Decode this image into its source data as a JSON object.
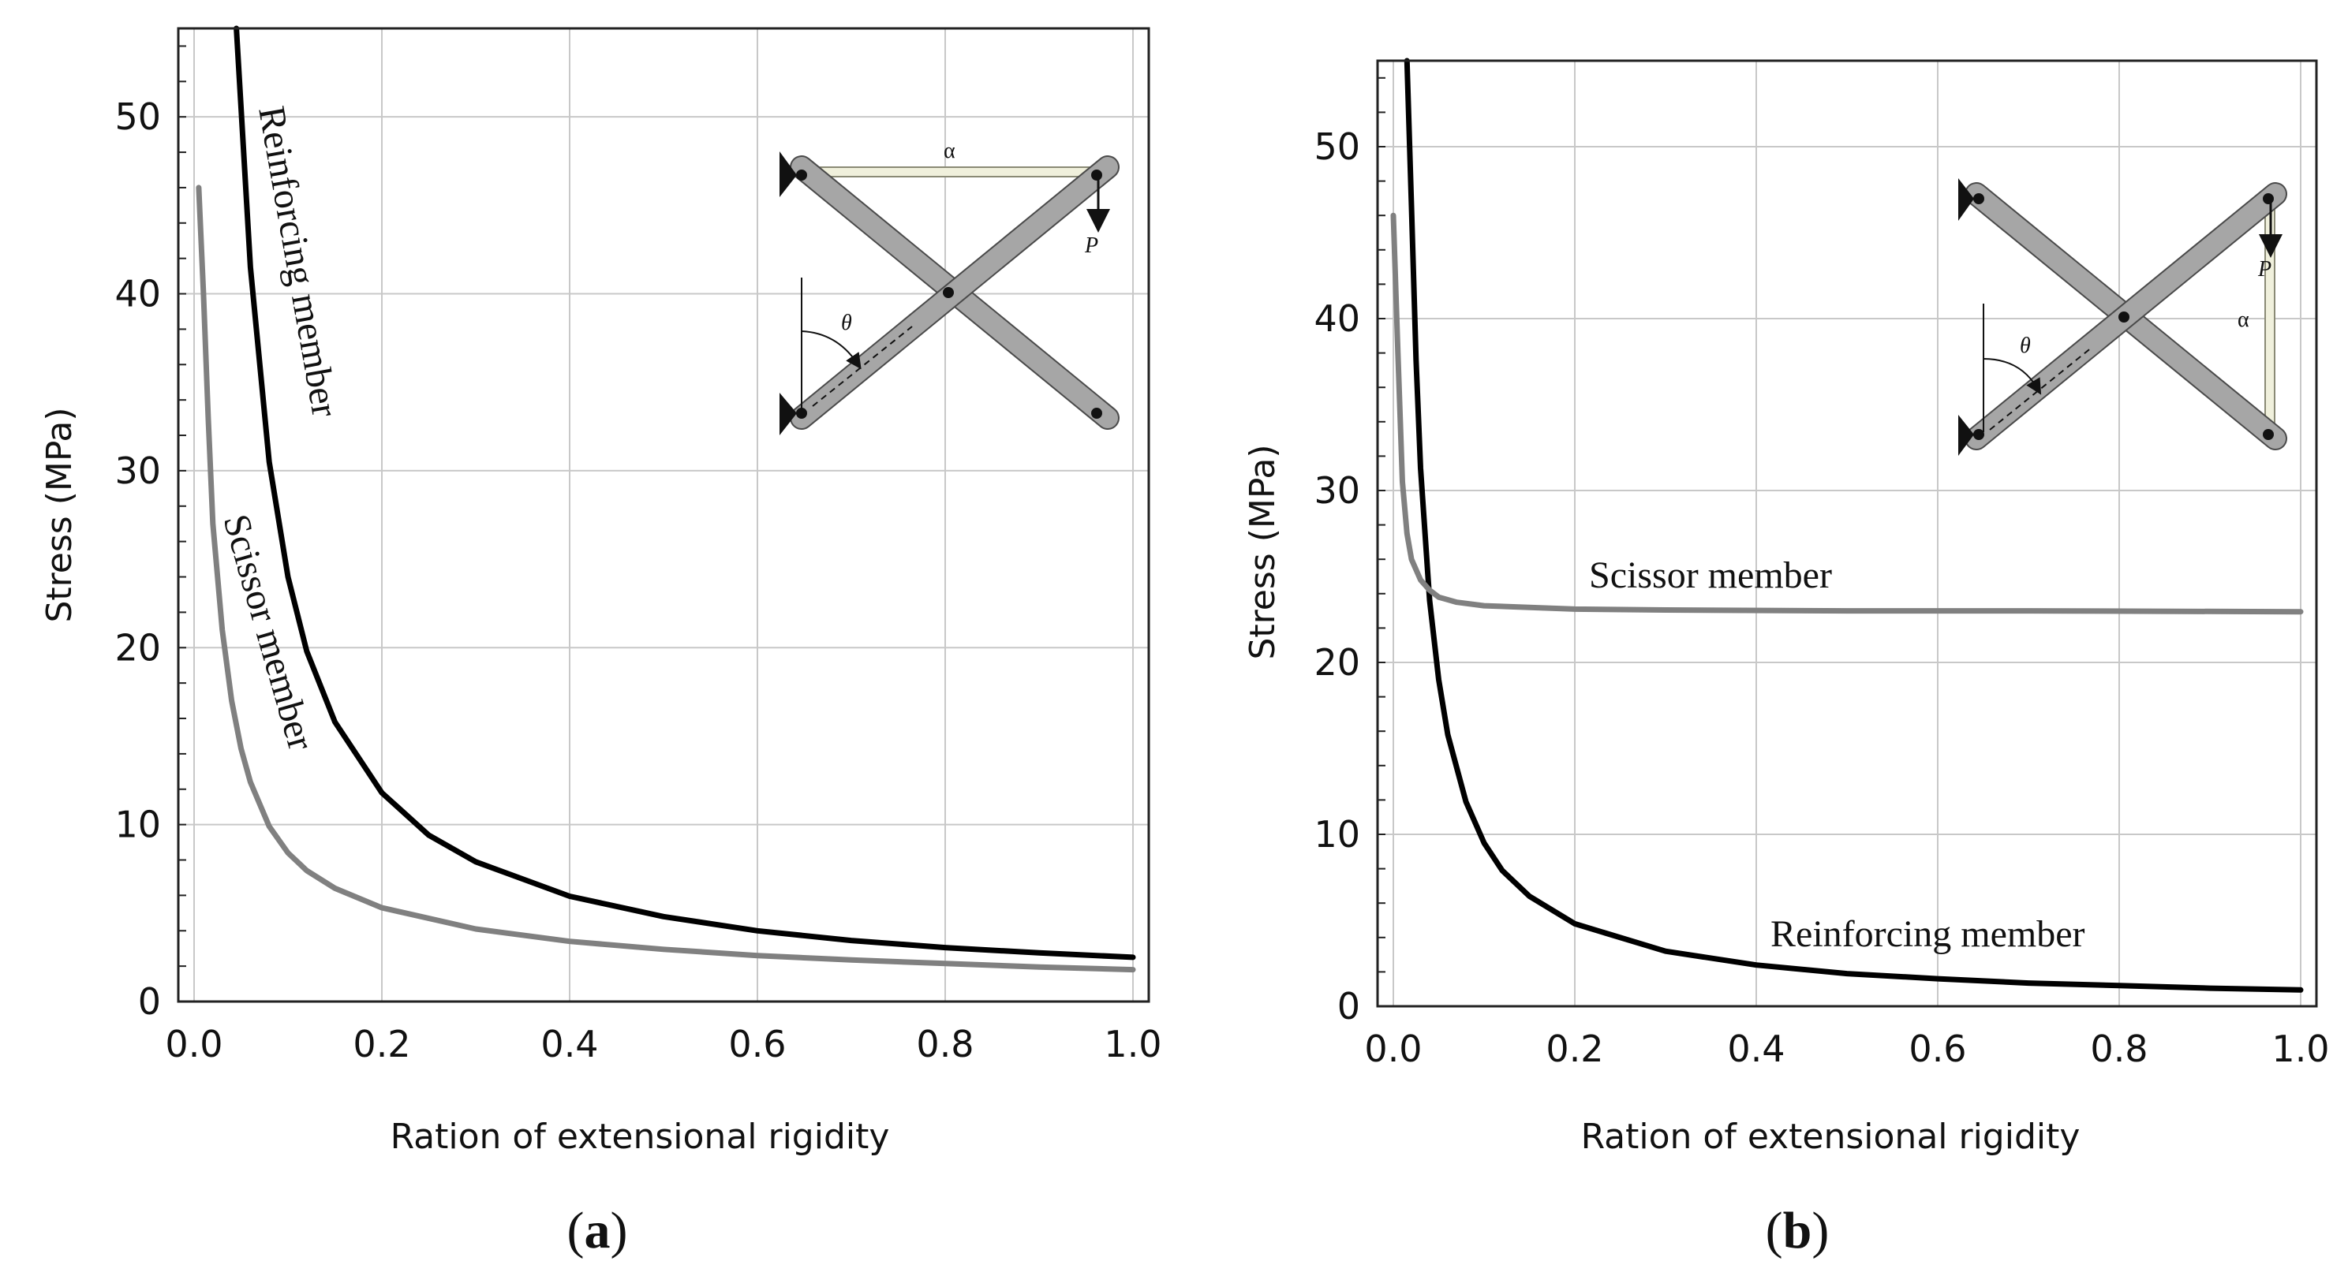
{
  "chart_data": [
    {
      "type": "line",
      "panel_label": "a",
      "xlabel": "Ration of extensional rigidity",
      "ylabel": "Stress (MPa)",
      "xlim": [
        0.0,
        1.0
      ],
      "ylim": [
        0,
        55
      ],
      "x_ticks": [
        "0.0",
        "0.2",
        "0.4",
        "0.6",
        "0.8",
        "1.0"
      ],
      "y_ticks": [
        "0",
        "10",
        "20",
        "30",
        "40",
        "50"
      ],
      "grid": true,
      "series": [
        {
          "name": "Reinforcing member",
          "color": "#000000",
          "x": [
            0.045,
            0.06,
            0.08,
            0.1,
            0.12,
            0.15,
            0.2,
            0.25,
            0.3,
            0.4,
            0.5,
            0.6,
            0.7,
            0.8,
            0.9,
            1.0
          ],
          "y": [
            55,
            41.5,
            30.5,
            24.0,
            19.8,
            15.8,
            11.8,
            9.4,
            7.9,
            5.95,
            4.8,
            4.0,
            3.45,
            3.05,
            2.75,
            2.5
          ]
        },
        {
          "name": "Scissor member",
          "color": "#808080",
          "x": [
            0.005,
            0.01,
            0.015,
            0.02,
            0.03,
            0.04,
            0.05,
            0.06,
            0.08,
            0.1,
            0.12,
            0.15,
            0.2,
            0.3,
            0.4,
            0.5,
            0.6,
            0.7,
            0.8,
            0.9,
            1.0
          ],
          "y": [
            46,
            40,
            33,
            27,
            21,
            17,
            14.3,
            12.4,
            9.9,
            8.4,
            7.4,
            6.4,
            5.3,
            4.1,
            3.4,
            2.95,
            2.6,
            2.35,
            2.15,
            1.95,
            1.8
          ]
        }
      ],
      "annotations": [
        "Reinforcing member",
        "Scissor member"
      ],
      "inset": {
        "angle_symbol": "θ",
        "load_symbol": "P",
        "member_symbol": "α"
      }
    },
    {
      "type": "line",
      "panel_label": "b",
      "xlabel": "Ration of extensional rigidity",
      "ylabel": "Stress (MPa)",
      "xlim": [
        0.0,
        1.0
      ],
      "ylim": [
        0,
        55
      ],
      "x_ticks": [
        "0.0",
        "0.2",
        "0.4",
        "0.6",
        "0.8",
        "1.0"
      ],
      "y_ticks": [
        "0",
        "10",
        "20",
        "30",
        "40",
        "50"
      ],
      "grid": true,
      "series": [
        {
          "name": "Reinforcing member",
          "color": "#000000",
          "x": [
            0.015,
            0.02,
            0.025,
            0.03,
            0.04,
            0.05,
            0.06,
            0.08,
            0.1,
            0.12,
            0.15,
            0.2,
            0.3,
            0.4,
            0.5,
            0.6,
            0.7,
            0.8,
            0.9,
            1.0
          ],
          "y": [
            55,
            46.5,
            37.6,
            31.3,
            23.6,
            19.0,
            15.8,
            11.9,
            9.5,
            7.9,
            6.4,
            4.8,
            3.2,
            2.4,
            1.9,
            1.6,
            1.35,
            1.2,
            1.05,
            0.95
          ]
        },
        {
          "name": "Scissor member",
          "color": "#808080",
          "x": [
            0.0,
            0.005,
            0.01,
            0.015,
            0.02,
            0.03,
            0.04,
            0.05,
            0.07,
            0.1,
            0.2,
            0.3,
            0.5,
            0.7,
            1.0
          ],
          "y": [
            46,
            38,
            30.5,
            27.5,
            26,
            24.8,
            24.2,
            23.8,
            23.5,
            23.3,
            23.1,
            23.05,
            23.0,
            23.0,
            22.95
          ]
        }
      ],
      "annotations": [
        "Scissor member",
        "Reinforcing member"
      ],
      "inset": {
        "angle_symbol": "θ",
        "load_symbol": "P",
        "member_symbol": "α"
      }
    }
  ]
}
